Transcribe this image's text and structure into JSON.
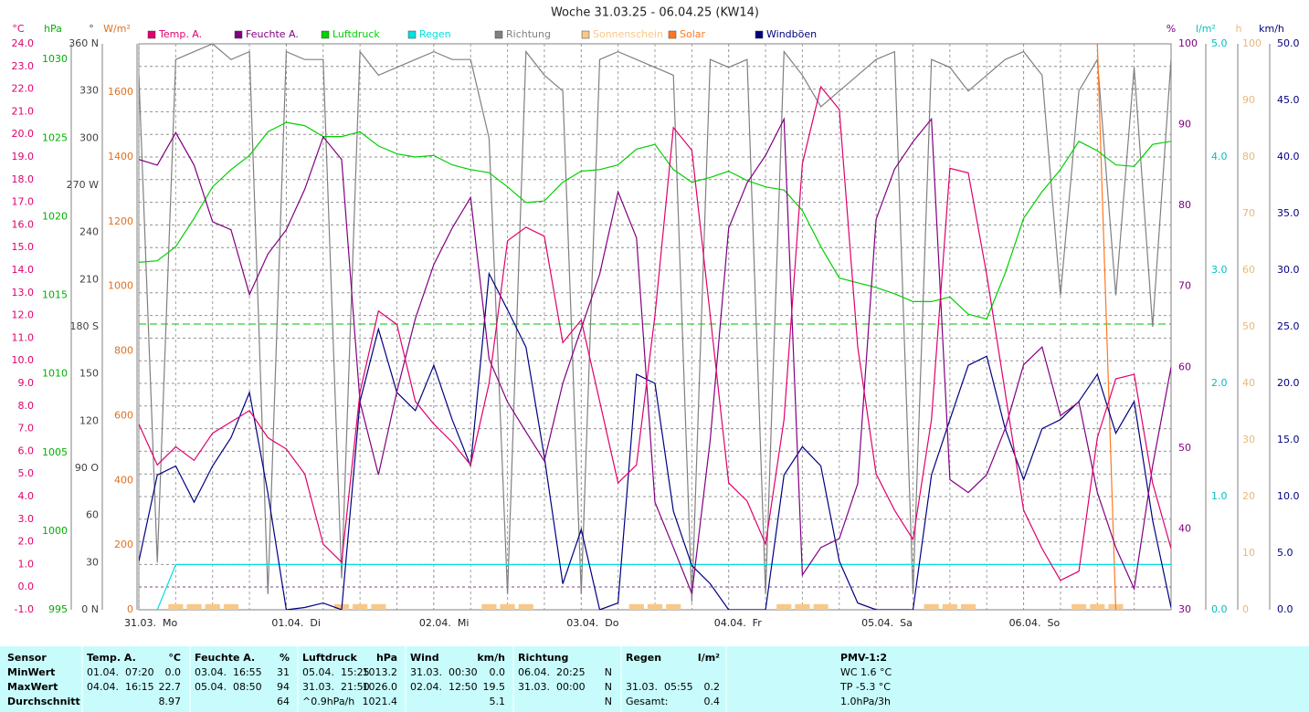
{
  "chart_data": {
    "type": "line",
    "title": "Woche 31.03.25 - 06.04.25 (KW14)",
    "xlim": [
      0,
      168
    ],
    "xticks": [
      {
        "value": 0,
        "label": "31.03.  Mo"
      },
      {
        "value": 24,
        "label": "01.04.  Di"
      },
      {
        "value": 48,
        "label": "02.04.  Mi"
      },
      {
        "value": 72,
        "label": "03.04.  Do"
      },
      {
        "value": 96,
        "label": "04.04.  Fr"
      },
      {
        "value": 120,
        "label": "05.04.  Sa"
      },
      {
        "value": 144,
        "label": "06.04.  So"
      }
    ],
    "grid": true,
    "axes": {
      "temp": {
        "unit": "°C",
        "lim": [
          -1,
          24
        ],
        "ticks": [
          {
            "value": 24,
            "label": "24.0"
          },
          {
            "value": 23,
            "label": "23.0"
          },
          {
            "value": 22,
            "label": "22.0"
          },
          {
            "value": 21,
            "label": "21.0"
          },
          {
            "value": 20,
            "label": "20.0"
          },
          {
            "value": 19,
            "label": "19.0"
          },
          {
            "value": 18,
            "label": "18.0"
          },
          {
            "value": 17,
            "label": "17.0"
          },
          {
            "value": 16,
            "label": "16.0"
          },
          {
            "value": 15,
            "label": "15.0"
          },
          {
            "value": 14,
            "label": "14.0"
          },
          {
            "value": 13,
            "label": "13.0"
          },
          {
            "value": 12,
            "label": "12.0"
          },
          {
            "value": 11,
            "label": "11.0"
          },
          {
            "value": 10,
            "label": "10.0"
          },
          {
            "value": 9,
            "label": "9.0"
          },
          {
            "value": 8,
            "label": "8.0"
          },
          {
            "value": 7,
            "label": "7.0"
          },
          {
            "value": 6,
            "label": "6.0"
          },
          {
            "value": 5,
            "label": "5.0"
          },
          {
            "value": 4,
            "label": "4.0"
          },
          {
            "value": 3,
            "label": "3.0"
          },
          {
            "value": 2,
            "label": "2.0"
          },
          {
            "value": 1,
            "label": "1.0"
          },
          {
            "value": 0,
            "label": "0.0"
          },
          {
            "value": -1,
            "label": "-1.0"
          }
        ]
      },
      "hpa": {
        "unit": "hPa",
        "lim": [
          995,
          1031
        ],
        "ticks": [
          995,
          1000,
          1005,
          1010,
          1015,
          1020,
          1025,
          1030
        ]
      },
      "dir": {
        "unit": "°",
        "lim": [
          0,
          360
        ],
        "ticks": [
          {
            "value": 0,
            "label": "0 N"
          },
          30,
          60,
          {
            "value": 90,
            "label": "90 O"
          },
          120,
          150,
          {
            "value": 180,
            "label": "180 S"
          },
          210,
          240,
          {
            "value": 270,
            "label": "270 W"
          },
          300,
          330,
          {
            "value": 360,
            "label": "360 N"
          }
        ]
      },
      "solar": {
        "unit": "W/m²",
        "lim": [
          0,
          1750
        ],
        "ticks": [
          0,
          200,
          400,
          600,
          800,
          1000,
          1200,
          1400,
          1600
        ]
      },
      "hum": {
        "unit": "%",
        "lim": [
          30,
          100
        ],
        "ticks": [
          30,
          40,
          50,
          60,
          70,
          80,
          90,
          100
        ]
      },
      "rain": {
        "unit": "l/m²",
        "lim": [
          0,
          5
        ],
        "ticks": [
          {
            "value": 0,
            "label": "0.0"
          },
          {
            "value": 1,
            "label": "1.0"
          },
          {
            "value": 2,
            "label": "2.0"
          },
          {
            "value": 3,
            "label": "3.0"
          },
          {
            "value": 4,
            "label": "4.0"
          },
          {
            "value": 5,
            "label": "5.0"
          }
        ]
      },
      "sun": {
        "unit": "h",
        "lim": [
          0,
          100
        ],
        "ticks": [
          0,
          10,
          20,
          30,
          40,
          50,
          60,
          70,
          80,
          90,
          100
        ]
      },
      "wind": {
        "unit": "km/h",
        "lim": [
          0,
          50
        ],
        "ticks": [
          {
            "value": 0,
            "label": "0.0"
          },
          {
            "value": 5,
            "label": "5.0"
          },
          {
            "value": 10,
            "label": "10.0"
          },
          {
            "value": 15,
            "label": "15.0"
          },
          {
            "value": 20,
            "label": "20.0"
          },
          {
            "value": 25,
            "label": "25.0"
          },
          {
            "value": 30,
            "label": "30.0"
          },
          {
            "value": 35,
            "label": "35.0"
          },
          {
            "value": 40,
            "label": "40.0"
          },
          {
            "value": 45,
            "label": "45.0"
          },
          {
            "value": 50,
            "label": "50.0"
          }
        ]
      }
    },
    "x": [
      0,
      3,
      6,
      9,
      12,
      15,
      18,
      21,
      24,
      27,
      30,
      33,
      36,
      39,
      42,
      45,
      48,
      51,
      54,
      57,
      60,
      63,
      66,
      69,
      72,
      75,
      78,
      81,
      84,
      87,
      90,
      93,
      96,
      99,
      102,
      105,
      108,
      111,
      114,
      117,
      120,
      123,
      126,
      129,
      132,
      135,
      138,
      141,
      144,
      147,
      150,
      153,
      156,
      159,
      162,
      165,
      168
    ],
    "series": [
      {
        "name": "Temp. A.",
        "color": "#e0006c",
        "axis": "temp",
        "type": "line",
        "values": [
          7.2,
          5.4,
          6.2,
          5.6,
          6.8,
          7.3,
          7.8,
          6.6,
          6.1,
          5.0,
          1.9,
          1.1,
          8.6,
          12.2,
          11.6,
          8.2,
          7.2,
          6.4,
          5.4,
          9.0,
          15.3,
          15.9,
          15.5,
          10.8,
          11.8,
          8.2,
          4.6,
          5.4,
          12.0,
          20.3,
          19.3,
          12.0,
          4.6,
          3.8,
          1.9,
          7.4,
          18.7,
          22.1,
          21.1,
          10.6,
          5.0,
          3.4,
          2.1,
          7.4,
          18.5,
          18.3,
          13.8,
          8.6,
          3.4,
          1.7,
          0.3,
          0.7,
          6.6,
          9.2,
          9.4,
          4.6,
          1.7
        ]
      },
      {
        "name": "Feuchte A.",
        "color": "#800080",
        "axis": "hum",
        "type": "line",
        "values": [
          85.7,
          85,
          89,
          85,
          78,
          77,
          69,
          74,
          77,
          82,
          88.5,
          85.7,
          55.7,
          46.7,
          57,
          66,
          72.7,
          77.2,
          81,
          61,
          55.7,
          52,
          48.4,
          58,
          64.8,
          71.5,
          81.7,
          76,
          43.3,
          37.7,
          32,
          51,
          77.2,
          82.8,
          86.2,
          90.7,
          34.3,
          37.7,
          38.8,
          45.6,
          78.3,
          84.5,
          87.9,
          90.7,
          46.1,
          44.5,
          46.7,
          52.4,
          60.3,
          62.5,
          54,
          55.7,
          44.5,
          37.7,
          32.6,
          47.8,
          60
        ]
      },
      {
        "name": "Luftdruck",
        "color": "#00d000",
        "axis": "hpa",
        "type": "line",
        "values": [
          1017.1,
          1017.2,
          1018.1,
          1019.9,
          1021.9,
          1023.0,
          1023.9,
          1025.4,
          1026.0,
          1025.8,
          1025.1,
          1025.1,
          1025.4,
          1024.5,
          1024.0,
          1023.8,
          1023.9,
          1023.3,
          1023.0,
          1022.8,
          1021.9,
          1020.9,
          1021.0,
          1022.2,
          1022.9,
          1023.0,
          1023.3,
          1024.3,
          1024.6,
          1023.0,
          1022.2,
          1022.5,
          1022.9,
          1022.3,
          1021.9,
          1021.7,
          1020.4,
          1018.1,
          1016.1,
          1015.8,
          1015.5,
          1015.1,
          1014.6,
          1014.6,
          1014.9,
          1013.8,
          1013.5,
          1016.4,
          1019.9,
          1021.6,
          1023.0,
          1024.8,
          1024.2,
          1023.3,
          1023.2,
          1024.6,
          1024.8
        ]
      },
      {
        "name": "Regen",
        "color": "#00e0e0",
        "axis": "rain",
        "type": "line",
        "values": [
          null,
          0,
          0.4,
          0.4,
          0.4,
          0.4,
          0.4,
          0.4,
          0.4,
          0.4,
          0.4,
          0.4,
          0.4,
          0.4,
          0.4,
          0.4,
          0.4,
          0.4,
          0.4,
          0.4,
          0.4,
          0.4,
          0.4,
          0.4,
          0.4,
          0.4,
          0.4,
          0.4,
          0.4,
          0.4,
          0.4,
          0.4,
          0.4,
          0.4,
          0.4,
          0.4,
          0.4,
          0.4,
          0.4,
          0.4,
          0.4,
          0.4,
          0.4,
          0.4,
          0.4,
          0.4,
          0.4,
          0.4,
          0.4,
          0.4,
          0.4,
          0.4,
          0.4,
          0.4,
          0.4,
          0.4,
          0.4
        ]
      },
      {
        "name": "Richtung",
        "color": "#808080",
        "axis": "dir",
        "type": "line",
        "values": [
          340,
          30,
          350,
          355,
          360,
          350,
          355,
          10,
          355,
          350,
          350,
          20,
          355,
          340,
          345,
          350,
          355,
          350,
          350,
          300,
          10,
          355,
          340,
          330,
          10,
          350,
          355,
          350,
          345,
          340,
          5,
          350,
          345,
          350,
          10,
          355,
          340,
          320,
          330,
          340,
          350,
          355,
          10,
          350,
          345,
          330,
          340,
          350,
          355,
          340,
          200,
          330,
          350,
          200,
          345,
          180,
          350
        ]
      },
      {
        "name": "Sonnenschein",
        "color": "#f8c888",
        "axis": "sun",
        "type": "bar",
        "values": [
          0,
          0,
          1,
          1,
          1,
          1,
          0,
          0,
          0,
          0,
          0,
          1,
          1,
          1,
          0,
          0,
          0,
          0,
          0,
          1,
          1,
          1,
          0,
          0,
          0,
          0,
          0,
          1,
          1,
          1,
          0,
          0,
          0,
          0,
          0,
          1,
          1,
          1,
          0,
          0,
          0,
          0,
          0,
          1,
          1,
          1,
          0,
          0,
          0,
          0,
          0,
          1,
          1,
          1,
          0,
          0,
          0
        ]
      },
      {
        "name": "Solar",
        "color": "#ff7820",
        "axis": "solar",
        "type": "line",
        "values": [
          null,
          null,
          null,
          null,
          null,
          null,
          null,
          null,
          null,
          null,
          null,
          null,
          null,
          null,
          null,
          null,
          null,
          null,
          null,
          null,
          null,
          null,
          null,
          null,
          null,
          null,
          null,
          null,
          null,
          null,
          null,
          null,
          null,
          null,
          null,
          null,
          null,
          null,
          null,
          null,
          null,
          null,
          null,
          null,
          null,
          null,
          null,
          null,
          null,
          null,
          null,
          null,
          1750,
          0,
          null,
          null,
          null
        ]
      },
      {
        "name": "Windböen",
        "color": "#000080",
        "axis": "wind",
        "type": "line",
        "values": [
          4.3,
          11.9,
          12.7,
          9.5,
          12.7,
          15.2,
          19.2,
          10.3,
          0,
          0.2,
          0.6,
          0,
          18.4,
          24.8,
          19.2,
          17.6,
          21.6,
          16.8,
          12.7,
          29.7,
          26.5,
          23.2,
          13.5,
          2.3,
          7.1,
          0,
          0.6,
          20.8,
          20,
          8.7,
          3.9,
          2.3,
          0,
          0,
          0,
          11.9,
          14.4,
          12.7,
          4.3,
          0.6,
          0,
          0,
          0,
          11.9,
          16.8,
          21.6,
          22.4,
          16,
          11.5,
          16,
          16.8,
          18.4,
          20.8,
          15.6,
          18.4,
          7.9,
          0.2
        ]
      }
    ]
  },
  "table": {
    "header": "Sensor",
    "row_labels": [
      "MinWert",
      "MaxWert",
      "Durchschnitt"
    ],
    "columns": [
      {
        "title": "Temp. A.",
        "unit": "°C",
        "rows": [
          [
            "01.04.  07:20",
            "0.0"
          ],
          [
            "04.04.  16:15",
            "22.7"
          ],
          [
            null,
            "8.97"
          ]
        ]
      },
      {
        "title": "Feuchte A.",
        "unit": "%",
        "rows": [
          [
            "03.04.  16:55",
            "31"
          ],
          [
            "05.04.  08:50",
            "94"
          ],
          [
            null,
            "64"
          ]
        ]
      },
      {
        "title": "Luftdruck",
        "unit": "hPa",
        "rows": [
          [
            "05.04.  15:25",
            "1013.2"
          ],
          [
            "31.03.  21:50",
            "1026.0"
          ],
          [
            "^0.9hPa/h",
            "1021.4"
          ]
        ]
      },
      {
        "title": "Wind",
        "unit": "km/h",
        "rows": [
          [
            "31.03.  00:30",
            "0.0"
          ],
          [
            "02.04.  12:50",
            "19.5"
          ],
          [
            null,
            "5.1"
          ]
        ]
      },
      {
        "title": "Richtung",
        "unit": null,
        "rows": [
          [
            "06.04.  20:25",
            "N"
          ],
          [
            "31.03.  00:00",
            "N"
          ],
          [
            null,
            "N"
          ]
        ]
      },
      {
        "title": "Regen",
        "unit": "l/m²",
        "rows": [
          [
            null,
            null
          ],
          [
            "31.03.  05:55",
            "0.2"
          ],
          [
            "Gesamt:",
            "0.4"
          ]
        ]
      }
    ],
    "pmv": {
      "title": "PMV-1:2",
      "lines": [
        "WC 1.6 °C",
        "TP -5.3 °C",
        "1.0hPa/3h"
      ]
    }
  }
}
